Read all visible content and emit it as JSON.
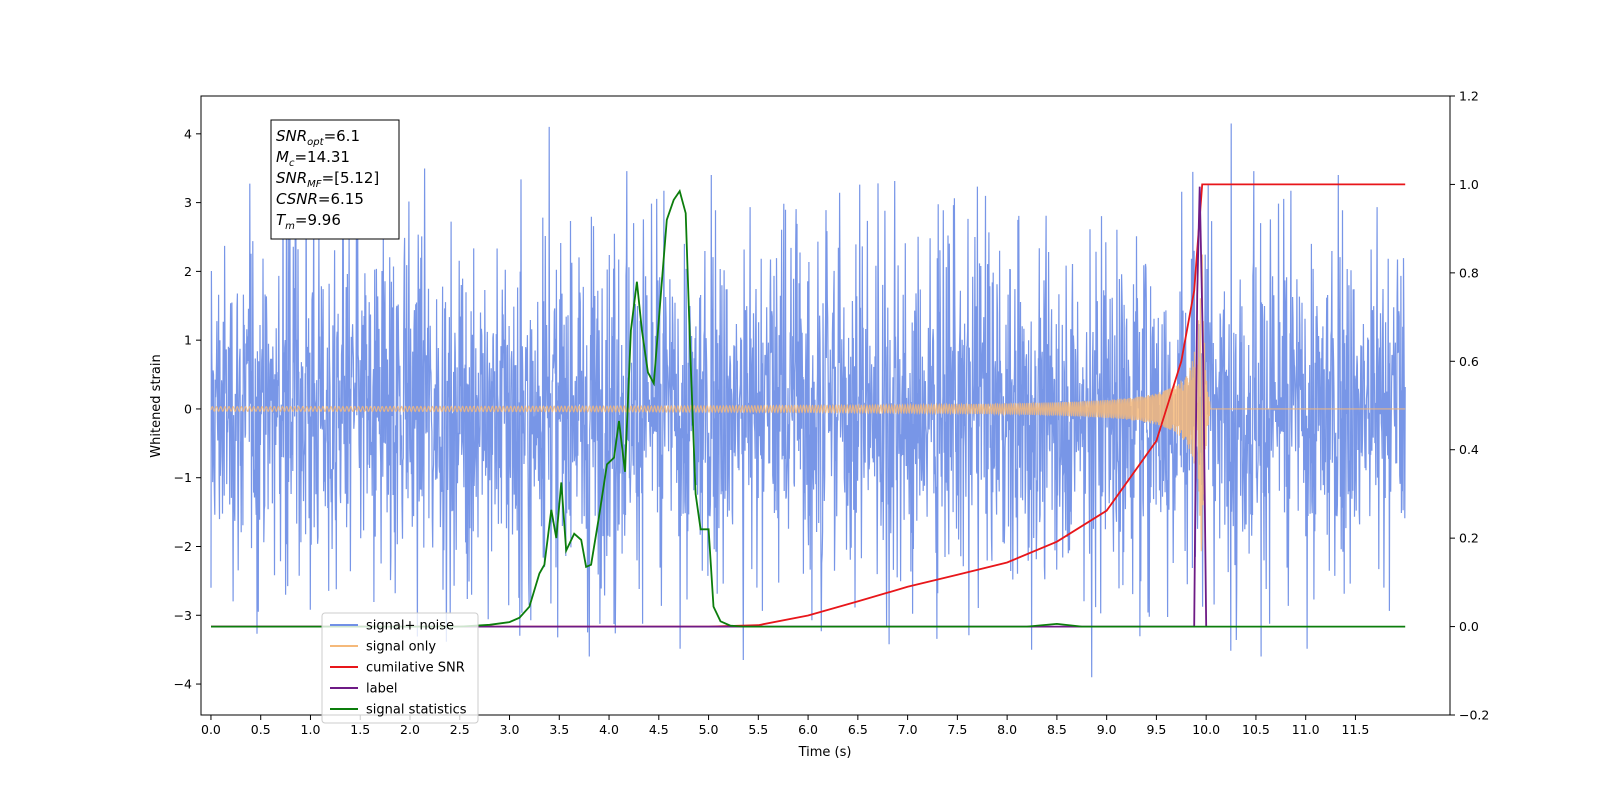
{
  "chart_data": {
    "type": "line",
    "xlabel": "Time (s)",
    "ylabel": "Whitened strain",
    "y2label": "",
    "xlim": [
      -0.1,
      12.45
    ],
    "ylim": [
      -4.45,
      4.55
    ],
    "y2lim": [
      -0.2,
      1.2
    ],
    "x_ticks": [
      0.0,
      0.5,
      1.0,
      1.5,
      2.0,
      2.5,
      3.0,
      3.5,
      4.0,
      4.5,
      5.0,
      5.5,
      6.0,
      6.5,
      7.0,
      7.5,
      8.0,
      8.5,
      9.0,
      9.5,
      10.0,
      10.5,
      11.0,
      11.5
    ],
    "y_ticks": [
      -4,
      -3,
      -2,
      -1,
      0,
      1,
      2,
      3,
      4
    ],
    "y2_ticks": [
      -0.2,
      0.0,
      0.2,
      0.4,
      0.6,
      0.8,
      1.0,
      1.2
    ],
    "grid": false,
    "legend_position": "lower-left",
    "annotation_lines": [
      {
        "base": "SNR",
        "sub": "opt",
        "value": "=6.1"
      },
      {
        "base": "M",
        "sub": "c",
        "value": "=14.31"
      },
      {
        "base": "SNR",
        "sub": "MF",
        "value": "=[5.12]"
      },
      {
        "base": "CSNR",
        "sub": "",
        "value": "=6.15"
      },
      {
        "base": "T",
        "sub": "m",
        "value": "=9.96"
      }
    ],
    "series": [
      {
        "name": "signal+ noise",
        "axis": "left",
        "color": "#7190e6",
        "kind": "noise",
        "x_range": [
          0.0,
          12.0
        ],
        "typical_range": [
          -2.0,
          2.0
        ],
        "extreme_range": [
          -3.9,
          4.15
        ],
        "points": [
          [
            0.0,
            -2.6
          ],
          [
            0.85,
            4.1
          ],
          [
            3.4,
            4.1
          ],
          [
            3.8,
            -3.6
          ],
          [
            5.35,
            -3.65
          ],
          [
            8.85,
            -3.9
          ],
          [
            10.25,
            4.15
          ],
          [
            10.55,
            -3.6
          ]
        ]
      },
      {
        "name": "signal only",
        "axis": "left",
        "color": "#f5b97a",
        "kind": "chirp",
        "x_range": [
          0.0,
          12.0
        ],
        "merger_time": 9.96,
        "peak_amplitude": 2.6
      },
      {
        "name": "cumilative SNR",
        "axis": "right",
        "color": "#e8161a",
        "kind": "line",
        "points": [
          [
            0.0,
            0.0
          ],
          [
            5.0,
            0.0
          ],
          [
            5.5,
            0.003
          ],
          [
            6.0,
            0.025
          ],
          [
            6.5,
            0.057
          ],
          [
            7.0,
            0.09
          ],
          [
            7.5,
            0.117
          ],
          [
            8.0,
            0.145
          ],
          [
            8.5,
            0.192
          ],
          [
            9.0,
            0.262
          ],
          [
            9.5,
            0.42
          ],
          [
            9.75,
            0.6
          ],
          [
            9.88,
            0.76
          ],
          [
            9.96,
            1.0
          ],
          [
            12.0,
            1.0
          ]
        ]
      },
      {
        "name": "label",
        "axis": "right",
        "color": "#6e1a85",
        "kind": "line",
        "points": [
          [
            0.0,
            0.0
          ],
          [
            9.88,
            0.0
          ],
          [
            9.91,
            0.75
          ],
          [
            9.935,
            0.995
          ],
          [
            9.97,
            0.6
          ],
          [
            10.0,
            0.0
          ]
        ]
      },
      {
        "name": "signal statistics",
        "axis": "right",
        "color": "#0c7d0c",
        "kind": "line",
        "points": [
          [
            0.0,
            0.0
          ],
          [
            2.5,
            0.0
          ],
          [
            2.8,
            0.004
          ],
          [
            3.0,
            0.01
          ],
          [
            3.1,
            0.02
          ],
          [
            3.2,
            0.045
          ],
          [
            3.3,
            0.12
          ],
          [
            3.35,
            0.14
          ],
          [
            3.42,
            0.264
          ],
          [
            3.47,
            0.2
          ],
          [
            3.52,
            0.326
          ],
          [
            3.57,
            0.172
          ],
          [
            3.65,
            0.21
          ],
          [
            3.72,
            0.196
          ],
          [
            3.77,
            0.135
          ],
          [
            3.82,
            0.14
          ],
          [
            3.9,
            0.25
          ],
          [
            3.98,
            0.367
          ],
          [
            4.05,
            0.382
          ],
          [
            4.1,
            0.465
          ],
          [
            4.16,
            0.35
          ],
          [
            4.22,
            0.67
          ],
          [
            4.28,
            0.78
          ],
          [
            4.33,
            0.67
          ],
          [
            4.39,
            0.575
          ],
          [
            4.45,
            0.55
          ],
          [
            4.52,
            0.75
          ],
          [
            4.58,
            0.92
          ],
          [
            4.65,
            0.965
          ],
          [
            4.71,
            0.985
          ],
          [
            4.77,
            0.935
          ],
          [
            4.82,
            0.6
          ],
          [
            4.87,
            0.3
          ],
          [
            4.92,
            0.22
          ],
          [
            5.0,
            0.22
          ],
          [
            5.05,
            0.045
          ],
          [
            5.12,
            0.012
          ],
          [
            5.22,
            0.002
          ],
          [
            5.35,
            0.0
          ],
          [
            8.2,
            0.0
          ],
          [
            8.5,
            0.006
          ],
          [
            8.75,
            0.0
          ],
          [
            12.0,
            0.0
          ]
        ]
      }
    ]
  }
}
